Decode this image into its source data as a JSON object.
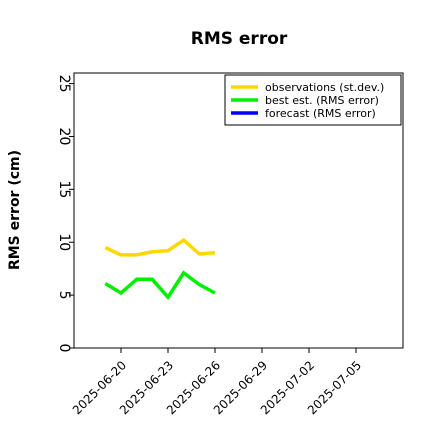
{
  "chart_data": {
    "type": "line",
    "title": "RMS error",
    "xlabel": "",
    "ylabel": "RMS error (cm)",
    "ylim": [
      0,
      26
    ],
    "xlim": [
      "2025-06-17",
      "2025-07-08"
    ],
    "yticks": [
      0,
      5,
      10,
      15,
      20,
      25
    ],
    "xticks": [
      "2025-06-20",
      "2025-06-23",
      "2025-06-26",
      "2025-06-29",
      "2025-07-02",
      "2025-07-05"
    ],
    "highlight_tick": "2025-06-26",
    "highlight_color": "#228b22",
    "grid": false,
    "legend_position": "top-right",
    "series": [
      {
        "name": "observations (st.dev.)",
        "color": "#ffd700",
        "x": [
          "2025-06-19",
          "2025-06-20",
          "2025-06-21",
          "2025-06-22",
          "2025-06-23",
          "2025-06-24",
          "2025-06-25",
          "2025-06-26"
        ],
        "values": [
          9.5,
          8.8,
          8.8,
          9.1,
          9.2,
          10.2,
          8.9,
          9.0
        ]
      },
      {
        "name": "best est. (RMS error)",
        "color": "#00ee00",
        "x": [
          "2025-06-19",
          "2025-06-20",
          "2025-06-21",
          "2025-06-22",
          "2025-06-23",
          "2025-06-24",
          "2025-06-25",
          "2025-06-26"
        ],
        "values": [
          6.1,
          5.2,
          6.5,
          6.5,
          4.8,
          7.1,
          6.0,
          5.2
        ]
      },
      {
        "name": "forecast (RMS error)",
        "color": "#0000ff",
        "x": [],
        "values": []
      }
    ]
  }
}
